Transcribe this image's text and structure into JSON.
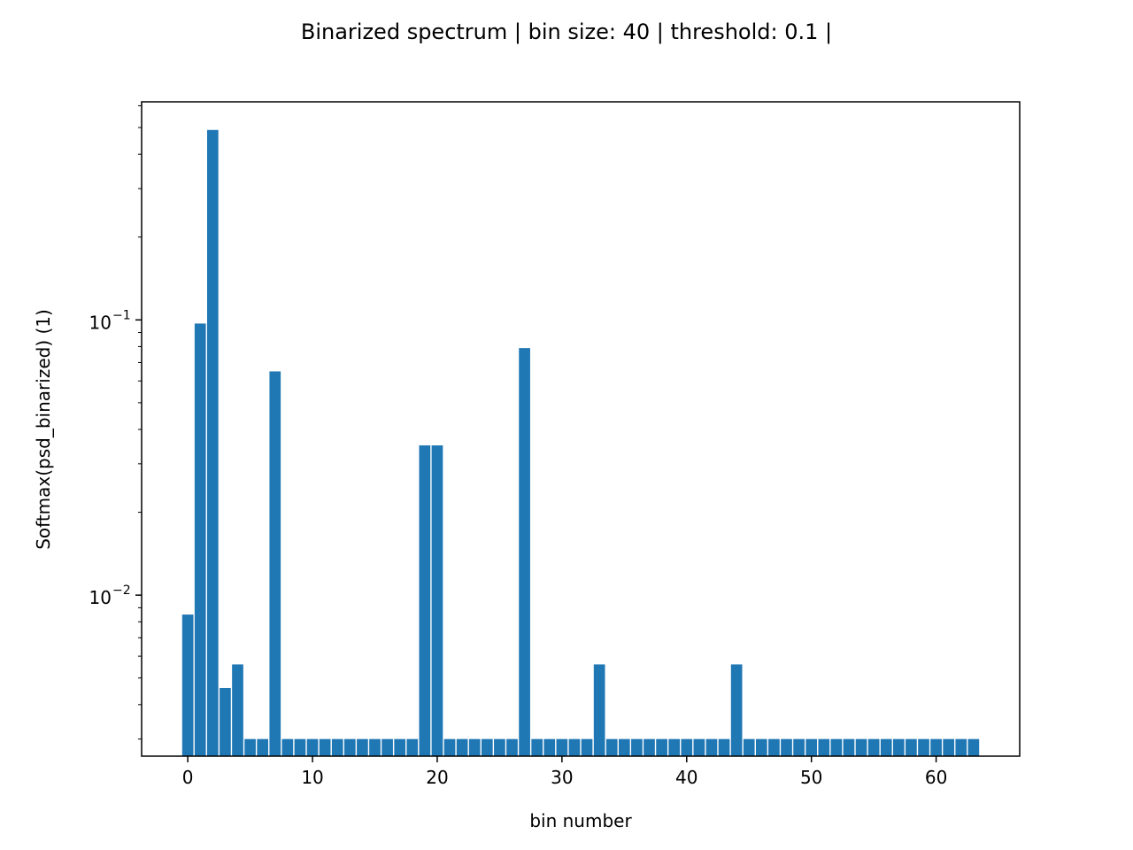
{
  "chart_data": {
    "type": "bar",
    "title": "Binarized spectrum | bin size: 40 | threshold: 0.1 |",
    "xlabel": "bin number",
    "ylabel": "Softmax(psd_binarized) (1)",
    "yscale": "log",
    "ylim": [
      0.0026,
      0.62
    ],
    "xlim": [
      -3.7,
      66.7
    ],
    "x_ticks": [
      0,
      10,
      20,
      30,
      40,
      50,
      60
    ],
    "x_tick_labels": [
      "0",
      "10",
      "20",
      "30",
      "40",
      "50",
      "60"
    ],
    "y_major_ticks": [
      0.01,
      0.1
    ],
    "y_major_tick_labels": [
      {
        "base": "10",
        "exponent": "−2"
      },
      {
        "base": "10",
        "exponent": "−1"
      }
    ],
    "grid": false,
    "legend": "none",
    "bar_color": "#1f77b4",
    "categories": [
      0,
      1,
      2,
      3,
      4,
      5,
      6,
      7,
      8,
      9,
      10,
      11,
      12,
      13,
      14,
      15,
      16,
      17,
      18,
      19,
      20,
      21,
      22,
      23,
      24,
      25,
      26,
      27,
      28,
      29,
      30,
      31,
      32,
      33,
      34,
      35,
      36,
      37,
      38,
      39,
      40,
      41,
      42,
      43,
      44,
      45,
      46,
      47,
      48,
      49,
      50,
      51,
      52,
      53,
      54,
      55,
      56,
      57,
      58,
      59,
      60,
      61,
      62,
      63
    ],
    "values": [
      0.0085,
      0.097,
      0.49,
      0.0046,
      0.0056,
      0.003,
      0.003,
      0.065,
      0.003,
      0.003,
      0.003,
      0.003,
      0.003,
      0.003,
      0.003,
      0.003,
      0.003,
      0.003,
      0.003,
      0.035,
      0.035,
      0.003,
      0.003,
      0.003,
      0.003,
      0.003,
      0.003,
      0.079,
      0.003,
      0.003,
      0.003,
      0.003,
      0.003,
      0.0056,
      0.003,
      0.003,
      0.003,
      0.003,
      0.003,
      0.003,
      0.003,
      0.003,
      0.003,
      0.003,
      0.0056,
      0.003,
      0.003,
      0.003,
      0.003,
      0.003,
      0.003,
      0.003,
      0.003,
      0.003,
      0.003,
      0.003,
      0.003,
      0.003,
      0.003,
      0.003,
      0.003,
      0.003,
      0.003,
      0.003
    ]
  }
}
